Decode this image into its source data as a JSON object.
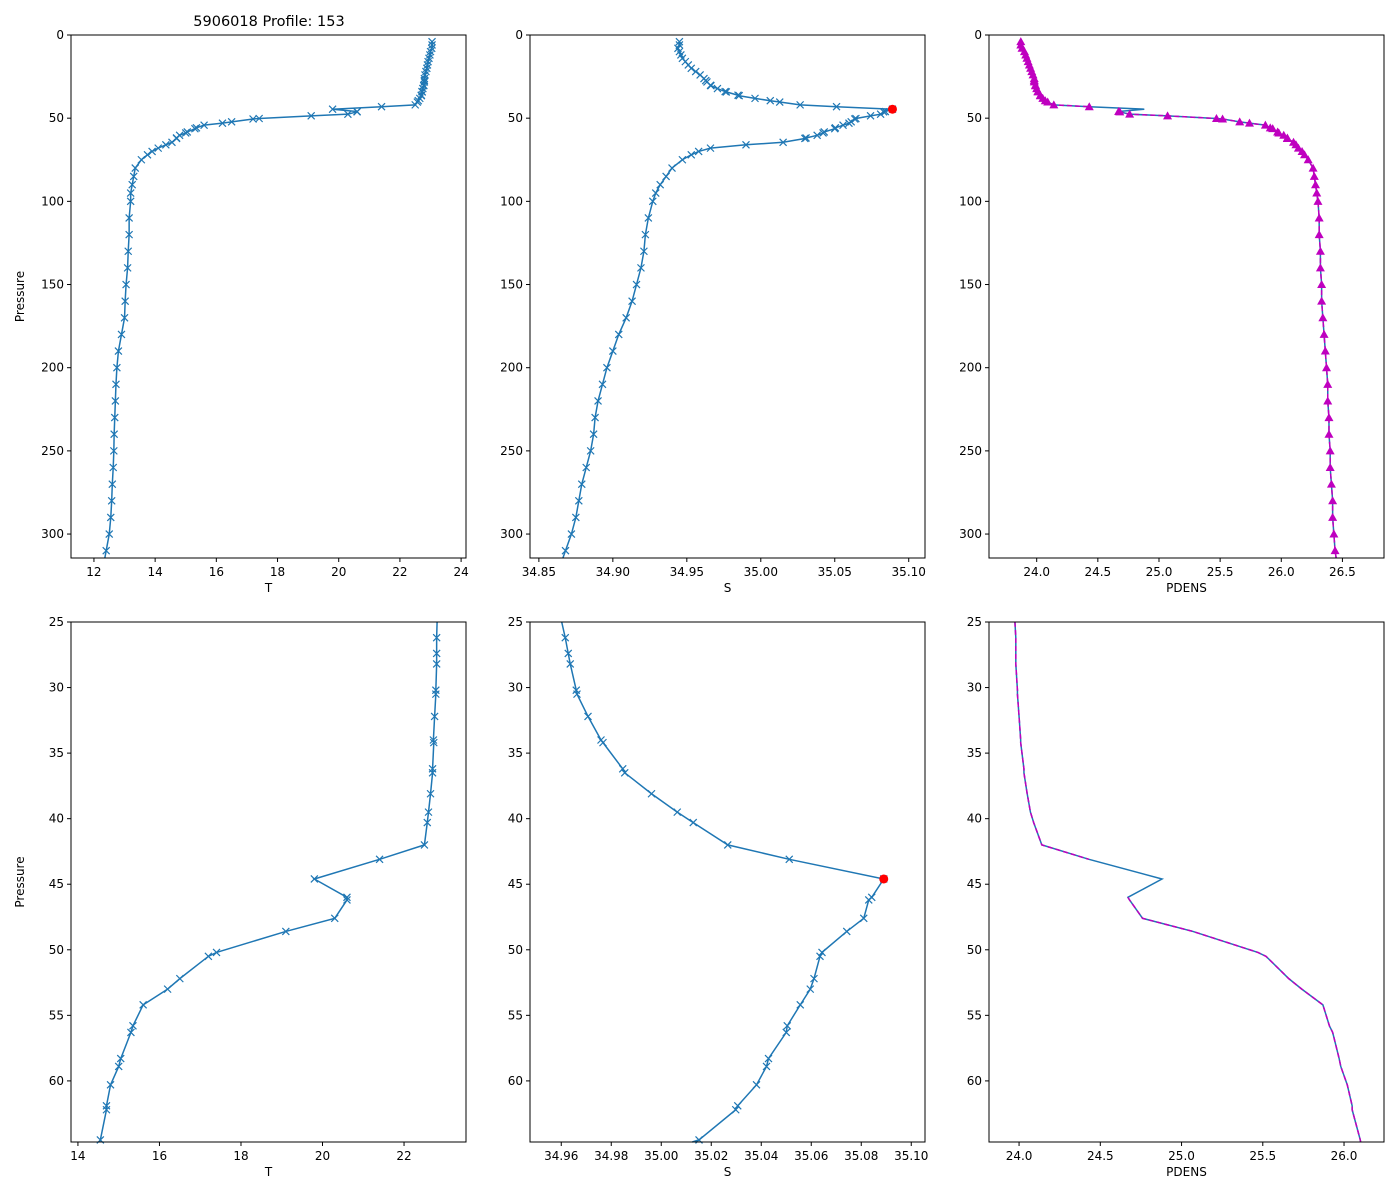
{
  "chart_data": {
    "type": "line",
    "title": "5906018 Profile: 153",
    "colors": {
      "line": "#1f77b4",
      "pdens_marker": "#bf00bf",
      "max_salinity": "#ff0000"
    },
    "profile": {
      "pressure": [
        4,
        6,
        8,
        10,
        12,
        14,
        16,
        18,
        20,
        22,
        24,
        26.2,
        27.4,
        28.2,
        30.2,
        30.5,
        32.2,
        34.0,
        34.2,
        36.2,
        36.5,
        38.1,
        39.5,
        40.3,
        42.0,
        43.1,
        44.6,
        46.0,
        46.2,
        47.6,
        48.6,
        50.2,
        50.5,
        52.2,
        53.0,
        54.2,
        55.8,
        56.3,
        58.3,
        58.9,
        60.3,
        61.9,
        62.2,
        64.5,
        66,
        68,
        70,
        72,
        75,
        80,
        85,
        90,
        95,
        100,
        110,
        120,
        130,
        140,
        150,
        160,
        170,
        180,
        190,
        200,
        210,
        220,
        230,
        240,
        250,
        260,
        270,
        280,
        290,
        300,
        310,
        315
      ],
      "T": [
        23.05,
        23.05,
        23.04,
        23.0,
        22.98,
        22.95,
        22.92,
        22.9,
        22.88,
        22.85,
        22.82,
        22.8,
        22.8,
        22.8,
        22.78,
        22.78,
        22.75,
        22.72,
        22.73,
        22.7,
        22.7,
        22.65,
        22.6,
        22.57,
        22.5,
        21.4,
        19.8,
        20.6,
        20.6,
        20.3,
        19.1,
        17.4,
        17.2,
        16.5,
        16.2,
        15.6,
        15.35,
        15.3,
        15.05,
        15.0,
        14.8,
        14.7,
        14.7,
        14.55,
        14.35,
        14.1,
        13.9,
        13.75,
        13.55,
        13.35,
        13.3,
        13.25,
        13.2,
        13.2,
        13.15,
        13.15,
        13.12,
        13.1,
        13.05,
        13.02,
        13.0,
        12.9,
        12.8,
        12.75,
        12.72,
        12.7,
        12.68,
        12.66,
        12.65,
        12.63,
        12.6,
        12.58,
        12.55,
        12.5,
        12.4,
        12.35
      ],
      "S": [
        34.945,
        34.945,
        34.944,
        34.945,
        34.946,
        34.947,
        34.949,
        34.951,
        34.953,
        34.956,
        34.959,
        34.9616,
        34.9628,
        34.9636,
        34.966,
        34.9663,
        34.9707,
        34.9759,
        34.9767,
        34.9846,
        34.9854,
        34.9961,
        35.0064,
        35.0128,
        35.0266,
        35.0512,
        35.089,
        35.0842,
        35.083,
        35.081,
        35.0742,
        35.0643,
        35.0635,
        35.0611,
        35.0596,
        35.0556,
        35.0504,
        35.05,
        35.0429,
        35.0421,
        35.0381,
        35.0306,
        35.0298,
        35.0151,
        34.99,
        34.966,
        34.958,
        34.953,
        34.947,
        34.94,
        34.936,
        34.932,
        34.929,
        34.927,
        34.924,
        34.922,
        34.921,
        34.919,
        34.916,
        34.913,
        34.909,
        34.904,
        34.9,
        34.896,
        34.893,
        34.89,
        34.888,
        34.887,
        34.885,
        34.882,
        34.879,
        34.877,
        34.875,
        34.872,
        34.868,
        34.866
      ],
      "PDENS": [
        23.87,
        23.87,
        23.88,
        23.9,
        23.91,
        23.92,
        23.93,
        23.94,
        23.95,
        23.96,
        23.97,
        23.98,
        23.98,
        23.98,
        23.99,
        23.99,
        24.0,
        24.01,
        24.01,
        24.03,
        24.03,
        24.05,
        24.07,
        24.09,
        24.14,
        24.43,
        24.88,
        24.67,
        24.68,
        24.76,
        25.07,
        25.47,
        25.52,
        25.66,
        25.74,
        25.87,
        25.91,
        25.93,
        25.97,
        25.98,
        26.02,
        26.05,
        26.05,
        26.1,
        26.12,
        26.14,
        26.17,
        26.19,
        26.22,
        26.26,
        26.27,
        26.28,
        26.29,
        26.3,
        26.31,
        26.31,
        26.32,
        26.32,
        26.33,
        26.33,
        26.34,
        26.35,
        26.36,
        26.37,
        26.38,
        26.38,
        26.39,
        26.39,
        26.4,
        26.4,
        26.41,
        26.42,
        26.42,
        26.43,
        26.44,
        26.45
      ],
      "PDENS_check": [
        23.87,
        23.87,
        23.88,
        23.9,
        23.91,
        23.92,
        23.93,
        23.94,
        23.95,
        23.96,
        23.97,
        23.98,
        23.98,
        23.98,
        23.99,
        23.99,
        24.0,
        24.01,
        24.01,
        24.03,
        24.03,
        24.05,
        24.07,
        24.09,
        24.14,
        24.43,
        null,
        24.67,
        24.68,
        24.76,
        25.07,
        25.47,
        25.52,
        25.66,
        25.74,
        25.87,
        25.91,
        25.93,
        25.97,
        25.98,
        26.02,
        26.05,
        26.05,
        26.1,
        26.12,
        26.14,
        26.17,
        26.19,
        26.22,
        26.26,
        26.27,
        26.28,
        26.29,
        26.3,
        26.31,
        26.31,
        26.32,
        26.32,
        26.33,
        26.33,
        26.34,
        26.35,
        26.36,
        26.37,
        26.38,
        26.38,
        26.39,
        26.39,
        26.4,
        26.4,
        26.41,
        26.42,
        26.42,
        26.43,
        26.44,
        26.45
      ],
      "max_salinity": {
        "pressure": 44.6,
        "S": 35.089
      }
    },
    "panels": [
      {
        "name": "temperature-full",
        "var": "T",
        "xlabel": "T",
        "ylabel": "Pressure",
        "xlim": [
          11.25,
          24.16
        ],
        "ylim": [
          314.4,
          0
        ],
        "xticks": [
          "12",
          "14",
          "16",
          "18",
          "20",
          "22",
          "24"
        ],
        "yticks": [
          "0",
          "50",
          "100",
          "150",
          "200",
          "250",
          "300"
        ],
        "markers": "x"
      },
      {
        "name": "salinity-full",
        "var": "S",
        "xlabel": "S",
        "ylabel": "",
        "xlim": [
          34.844,
          35.111
        ],
        "ylim": [
          314.4,
          0
        ],
        "xticks": [
          "34.85",
          "34.90",
          "34.95",
          "35.00",
          "35.05",
          "35.10"
        ],
        "yticks": [
          "0",
          "50",
          "100",
          "150",
          "200",
          "250",
          "300"
        ],
        "markers": "x",
        "max_point": true
      },
      {
        "name": "density-full",
        "var": "PDENS",
        "xlabel": "PDENS",
        "ylabel": "",
        "xlim": [
          23.61,
          26.84
        ],
        "ylim": [
          314.4,
          0
        ],
        "xticks": [
          "24.0",
          "24.5",
          "25.0",
          "25.5",
          "26.0",
          "26.5"
        ],
        "yticks": [
          "0",
          "50",
          "100",
          "150",
          "200",
          "250",
          "300"
        ],
        "markers": "triangle",
        "overlay": true
      },
      {
        "name": "temperature-zoom",
        "var": "T",
        "xlabel": "T",
        "ylabel": "Pressure",
        "xlim": [
          13.83,
          23.52
        ],
        "ylim": [
          64.66,
          25
        ],
        "xticks": [
          "14",
          "16",
          "18",
          "20",
          "22"
        ],
        "yticks": [
          "25",
          "30",
          "35",
          "40",
          "45",
          "50",
          "55",
          "60"
        ],
        "markers": "x"
      },
      {
        "name": "salinity-zoom",
        "var": "S",
        "xlabel": "S",
        "ylabel": "",
        "xlim": [
          34.9475,
          35.1055
        ],
        "ylim": [
          64.66,
          25
        ],
        "xticks": [
          "34.96",
          "34.98",
          "35.00",
          "35.02",
          "35.04",
          "35.06",
          "35.08",
          "35.10"
        ],
        "yticks": [
          "25",
          "30",
          "35",
          "40",
          "45",
          "50",
          "55",
          "60"
        ],
        "markers": "x",
        "max_point": true
      },
      {
        "name": "density-zoom",
        "var": "PDENS",
        "xlabel": "PDENS",
        "ylabel": "",
        "xlim": [
          23.815,
          26.246
        ],
        "ylim": [
          64.66,
          25
        ],
        "xticks": [
          "24.0",
          "24.5",
          "25.0",
          "25.5",
          "26.0"
        ],
        "yticks": [
          "25",
          "30",
          "35",
          "40",
          "45",
          "50",
          "55",
          "60"
        ],
        "markers": "none",
        "overlay": true
      }
    ]
  }
}
